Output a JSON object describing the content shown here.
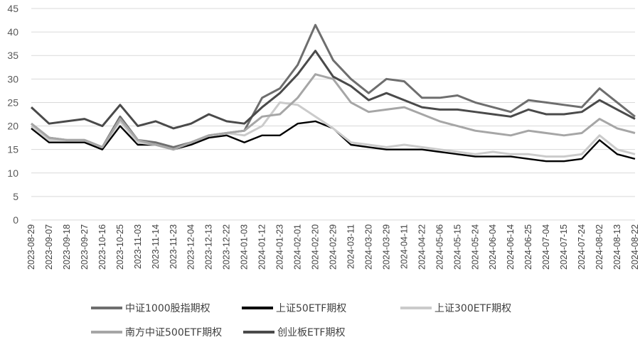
{
  "chart_data": {
    "type": "line",
    "title": "",
    "xlabel": "",
    "ylabel": "",
    "ylim": [
      0,
      45
    ],
    "yticks": [
      0,
      5,
      10,
      15,
      20,
      25,
      30,
      35,
      40,
      45
    ],
    "grid": "horizontal",
    "legend_position": "bottom",
    "x": [
      "2023-08-29",
      "2023-09-07",
      "2023-09-18",
      "2023-09-27",
      "2023-10-16",
      "2023-10-25",
      "2023-11-03",
      "2023-11-14",
      "2023-11-23",
      "2023-12-04",
      "2023-12-13",
      "2023-12-22",
      "2024-01-03",
      "2024-01-12",
      "2024-01-23",
      "2024-02-01",
      "2024-02-20",
      "2024-02-29",
      "2024-03-11",
      "2024-03-20",
      "2024-03-29",
      "2024-04-11",
      "2024-04-22",
      "2024-05-06",
      "2024-05-15",
      "2024-05-24",
      "2024-06-04",
      "2024-06-14",
      "2024-06-25",
      "2024-07-04",
      "2024-07-15",
      "2024-07-24",
      "2024-08-02",
      "2024-08-13",
      "2024-08-22"
    ],
    "series": [
      {
        "name": "中证1000股指期权",
        "color": "#6e6e6e",
        "width": 3,
        "values": [
          20.5,
          17.5,
          17.0,
          17.0,
          15.5,
          22.0,
          17.0,
          16.5,
          15.5,
          16.5,
          18.0,
          18.5,
          19.0,
          26.0,
          28.0,
          33.0,
          41.5,
          34.0,
          30.0,
          27.0,
          30.0,
          29.5,
          26.0,
          26.0,
          26.5,
          25.0,
          24.0,
          23.0,
          25.5,
          25.0,
          24.5,
          24.0,
          28.0,
          25.0,
          22.0
        ]
      },
      {
        "name": "上证50ETF期权",
        "color": "#000000",
        "width": 2.4,
        "values": [
          19.5,
          16.5,
          16.5,
          16.5,
          15.0,
          20.0,
          16.0,
          16.0,
          15.0,
          16.0,
          17.5,
          18.0,
          16.5,
          18.0,
          18.0,
          20.5,
          21.0,
          19.5,
          16.0,
          15.5,
          15.0,
          15.0,
          15.0,
          14.5,
          14.0,
          13.5,
          13.5,
          13.5,
          13.0,
          12.5,
          12.5,
          13.0,
          17.0,
          14.0,
          13.0
        ]
      },
      {
        "name": "上证300ETF期权",
        "color": "#cbcbcb",
        "width": 3,
        "values": [
          20.0,
          17.0,
          17.0,
          17.0,
          15.5,
          21.0,
          16.5,
          16.0,
          15.0,
          16.5,
          18.0,
          18.5,
          18.0,
          20.0,
          25.0,
          24.5,
          22.0,
          19.5,
          16.5,
          16.0,
          15.5,
          16.0,
          15.5,
          15.0,
          14.5,
          14.0,
          14.5,
          14.0,
          14.0,
          13.5,
          13.5,
          14.0,
          18.0,
          15.0,
          14.0
        ]
      },
      {
        "name": "南方中证500ETF期权",
        "color": "#a6a6a6",
        "width": 3,
        "values": [
          20.5,
          17.5,
          17.0,
          17.0,
          15.5,
          21.5,
          17.0,
          16.0,
          15.0,
          16.5,
          18.0,
          18.5,
          19.0,
          22.0,
          22.5,
          26.0,
          31.0,
          30.0,
          25.0,
          23.0,
          23.5,
          24.0,
          22.5,
          21.0,
          20.0,
          19.0,
          18.5,
          18.0,
          19.0,
          18.5,
          18.0,
          18.5,
          21.5,
          19.5,
          18.5
        ]
      },
      {
        "name": "创业板ETF期权",
        "color": "#4a4a4a",
        "width": 3,
        "values": [
          24.0,
          20.5,
          21.0,
          21.5,
          20.0,
          24.5,
          20.0,
          21.0,
          19.5,
          20.5,
          22.5,
          21.0,
          20.5,
          24.0,
          27.0,
          31.0,
          36.0,
          30.5,
          28.5,
          25.5,
          27.0,
          25.5,
          24.0,
          23.5,
          23.5,
          23.0,
          22.5,
          22.0,
          23.5,
          22.5,
          22.5,
          23.0,
          25.5,
          23.5,
          21.5
        ]
      }
    ]
  }
}
